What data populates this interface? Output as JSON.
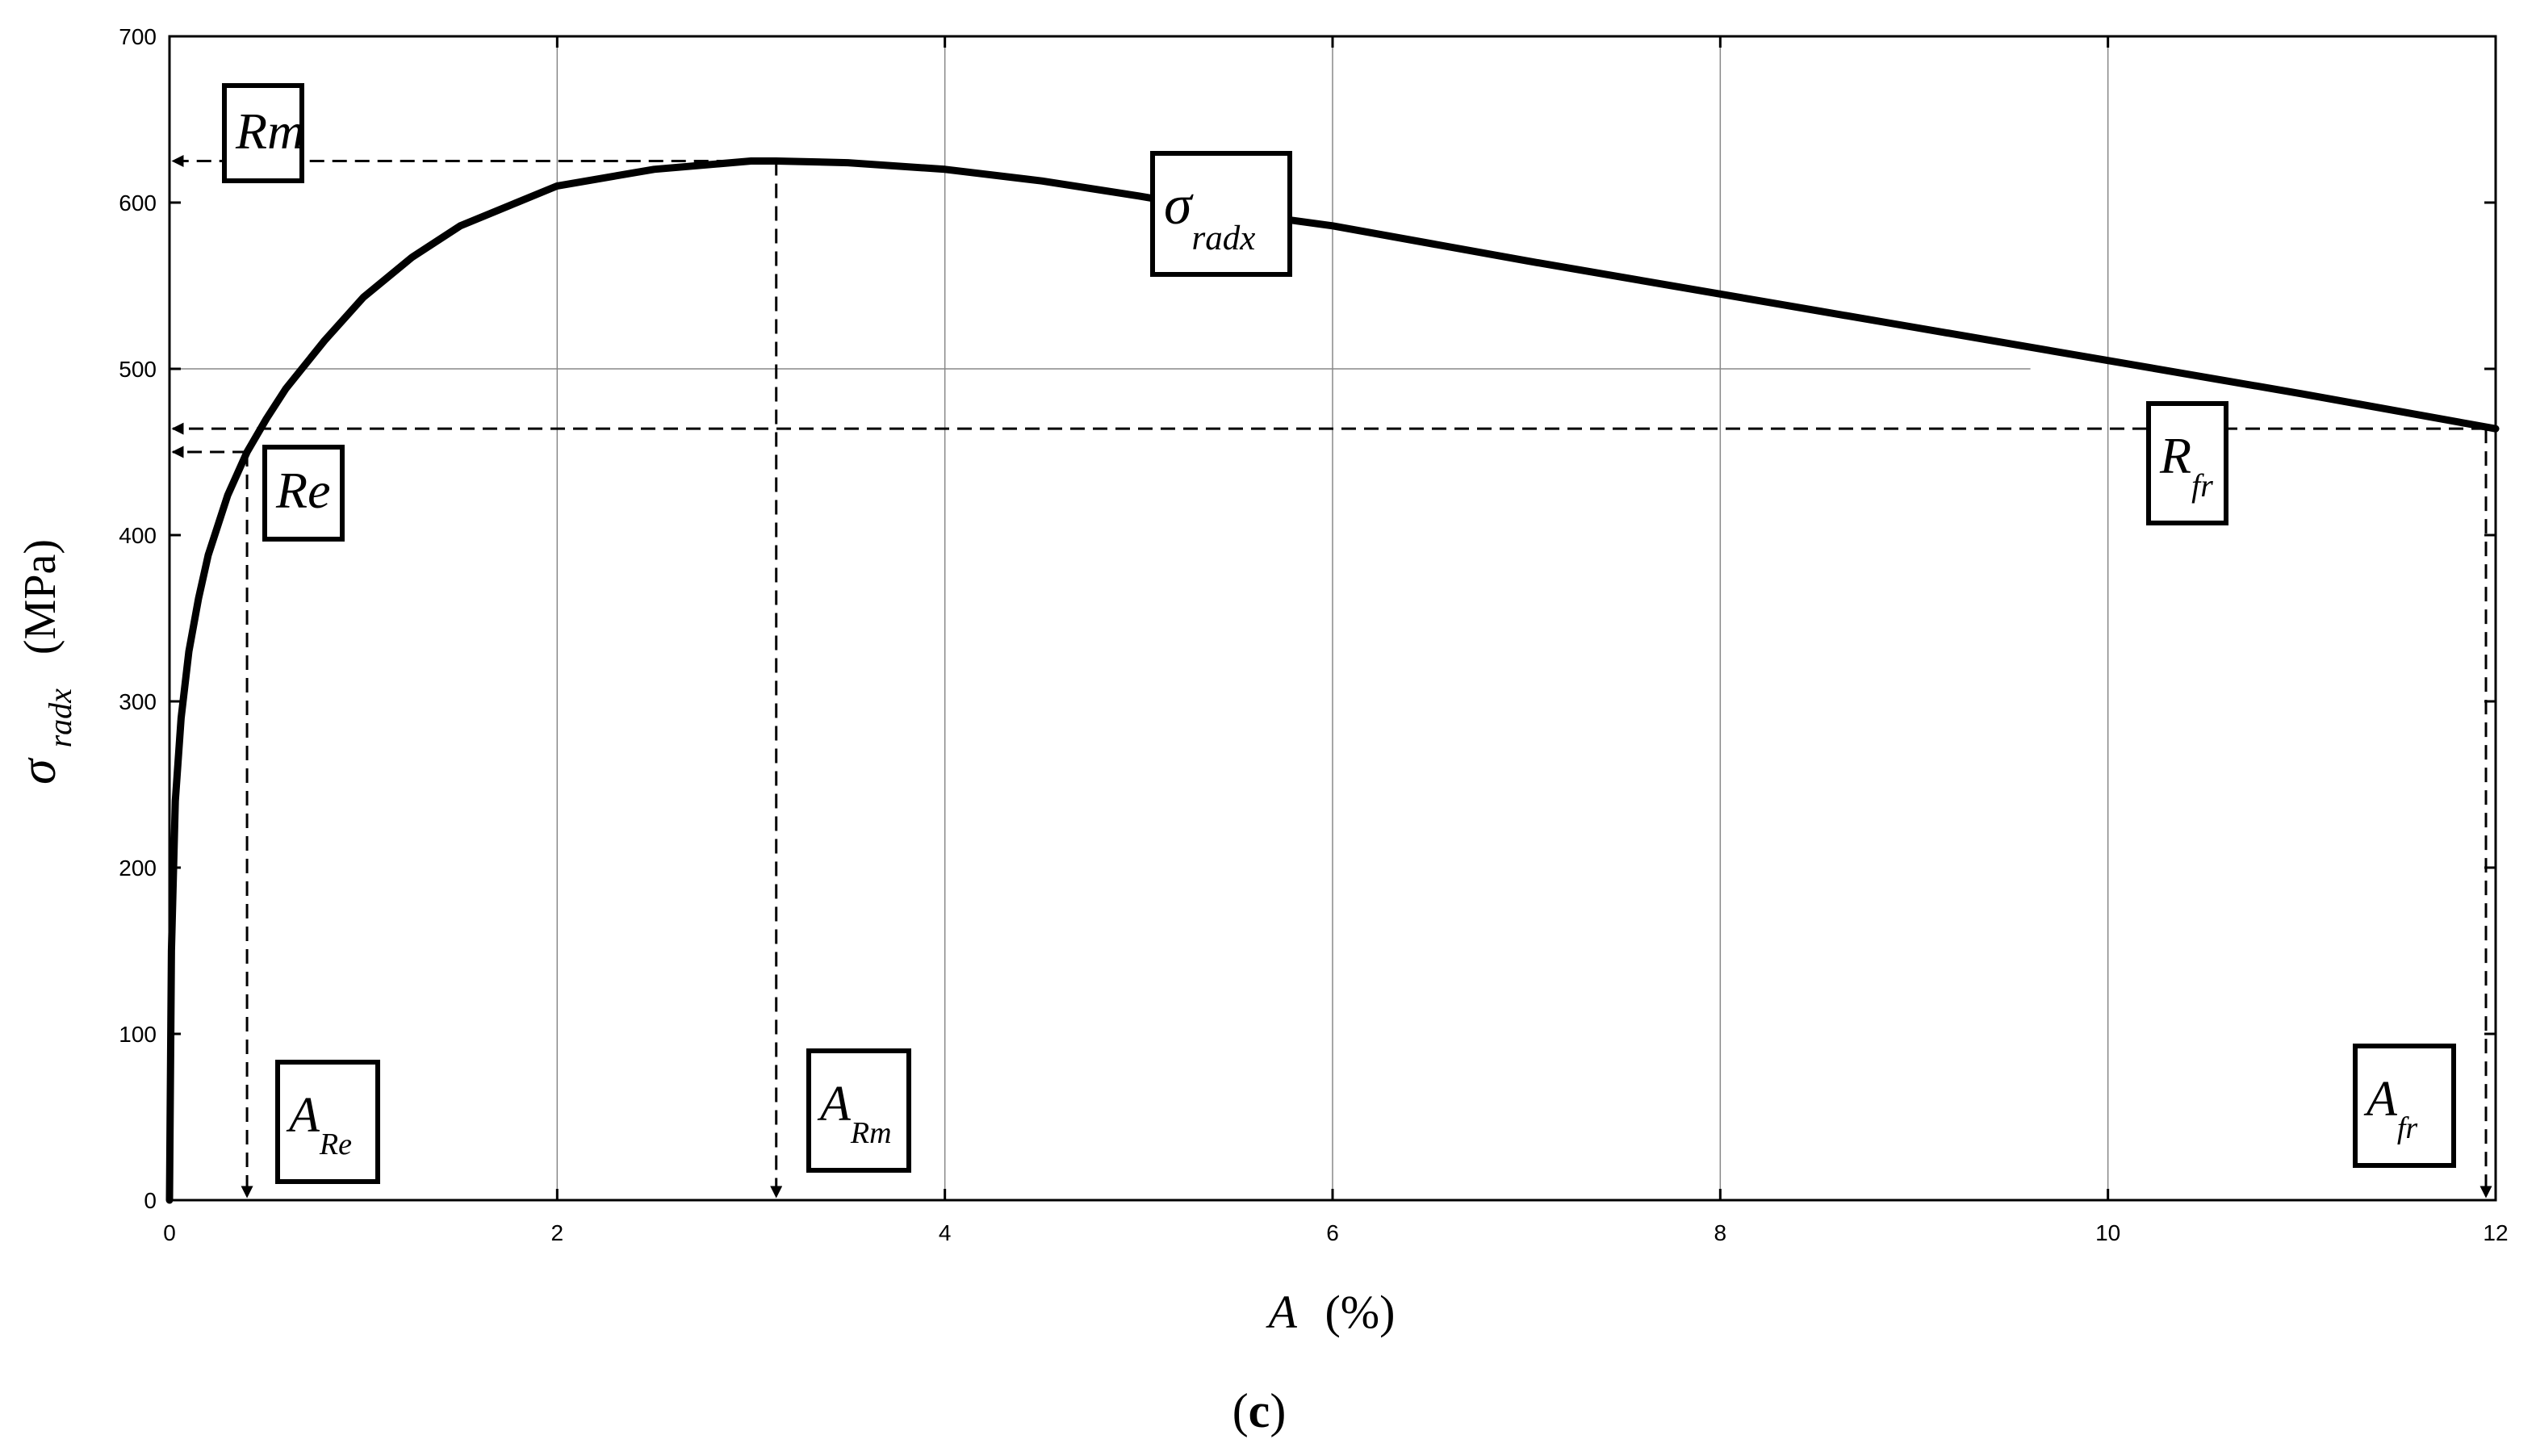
{
  "chart_data": {
    "type": "line",
    "xlabel": {
      "symbol": "A",
      "unit": "(%)"
    },
    "ylabel": {
      "symbol": "σ",
      "subscript": "radx",
      "unit": "(MPa)"
    },
    "xlim": [
      0,
      12
    ],
    "ylim": [
      0,
      700
    ],
    "xticks": [
      "0",
      "2",
      "4",
      "6",
      "8",
      "10",
      "12"
    ],
    "yticks": [
      "0",
      "100",
      "200",
      "300",
      "400",
      "500",
      "600",
      "700"
    ],
    "grid": true,
    "caption": {
      "open": "(",
      "letter": "c",
      "close": ")"
    },
    "series": [
      {
        "x": [
          0,
          0.01,
          0.03,
          0.06,
          0.1,
          0.15,
          0.2,
          0.3,
          0.4,
          0.5,
          0.6,
          0.8,
          1.0,
          1.25,
          1.5,
          2.0,
          2.5,
          3.0,
          3.13,
          3.5,
          4.0,
          4.5,
          5.0,
          5.5,
          6.0,
          7.0,
          8.0,
          9.0,
          10.0,
          11.0,
          12.0
        ],
        "y": [
          0,
          150,
          240,
          290,
          330,
          362,
          388,
          424,
          450,
          470,
          488,
          517,
          543,
          567,
          586,
          610,
          620,
          625,
          625,
          624,
          620,
          613,
          604,
          594,
          586,
          565,
          545,
          525,
          505,
          485,
          464
        ]
      }
    ],
    "guides": {
      "Rm": {
        "x": 3.13,
        "y": 625
      },
      "Re": {
        "x": 0.4,
        "y": 450
      },
      "Rfr": {
        "x": 11.95,
        "y": 464
      },
      "grid_500_xmax": 9.6
    },
    "annotations": [
      {
        "id": "Rm",
        "main": "Rm",
        "sub": ""
      },
      {
        "id": "sigma-radx",
        "main": "σ",
        "sub": "radx"
      },
      {
        "id": "Re",
        "main": "Re",
        "sub": ""
      },
      {
        "id": "Rfr",
        "main": "R",
        "sub": "fr"
      },
      {
        "id": "ARe",
        "main": "A",
        "sub": "Re"
      },
      {
        "id": "ARm",
        "main": "A",
        "sub": "Rm"
      },
      {
        "id": "Afr",
        "main": "A",
        "sub": "fr"
      }
    ]
  }
}
